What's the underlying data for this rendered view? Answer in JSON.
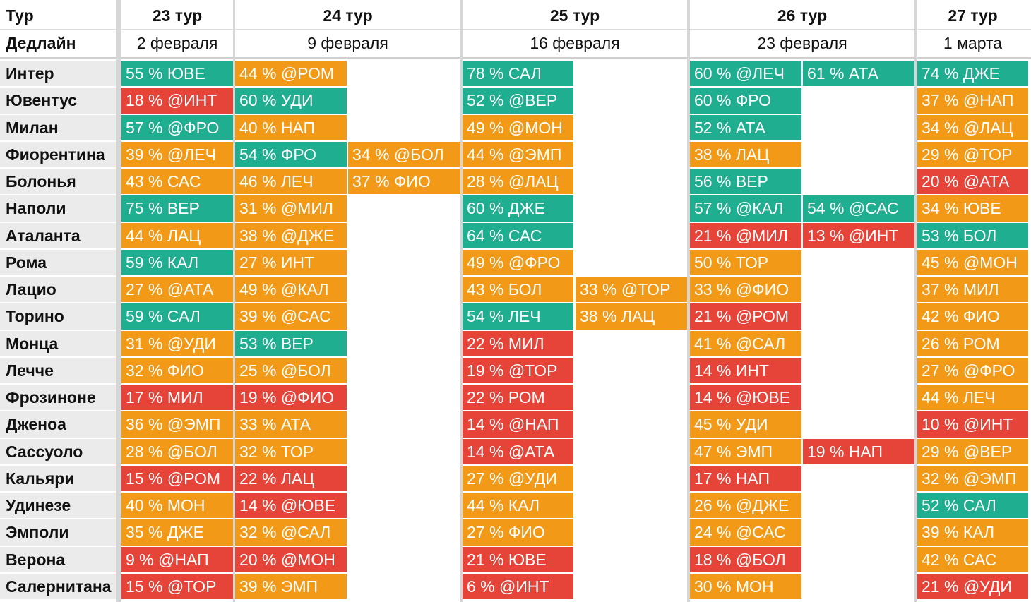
{
  "header": {
    "row1_label": "Тур",
    "row2_label": "Дедлайн",
    "rounds": [
      {
        "name": "23 тур",
        "deadline": "2 февраля"
      },
      {
        "name": "24 тур",
        "deadline": "9 февраля"
      },
      {
        "name": "25 тур",
        "deadline": "16 февраля"
      },
      {
        "name": "26 тур",
        "deadline": "23 февраля"
      },
      {
        "name": "27 тур",
        "deadline": "1 марта"
      }
    ]
  },
  "colors": {
    "green": "#1fae8f",
    "orange": "#f29a18",
    "red": "#e64339"
  },
  "teams": [
    {
      "name": "Интер",
      "cells": [
        [
          "55 % ЮВЕ",
          "g"
        ],
        [
          "44 % @РОМ",
          "o"
        ],
        [
          "",
          ""
        ],
        [
          "78 % САЛ",
          "g"
        ],
        [
          "",
          ""
        ],
        [
          "60 % @ЛЕЧ",
          "g"
        ],
        [
          "61 % АТА",
          "g"
        ],
        [
          "74 % ДЖЕ",
          "g"
        ]
      ]
    },
    {
      "name": "Ювентус",
      "cells": [
        [
          "18 % @ИНТ",
          "r"
        ],
        [
          "60 % УДИ",
          "g"
        ],
        [
          "",
          ""
        ],
        [
          "52 % @ВЕР",
          "g"
        ],
        [
          "",
          ""
        ],
        [
          "60 % ФРО",
          "g"
        ],
        [
          "",
          ""
        ],
        [
          "37 % @НАП",
          "o"
        ]
      ]
    },
    {
      "name": "Милан",
      "cells": [
        [
          "57 % @ФРО",
          "g"
        ],
        [
          "40 % НАП",
          "o"
        ],
        [
          "",
          ""
        ],
        [
          "49 % @МОН",
          "o"
        ],
        [
          "",
          ""
        ],
        [
          "52 % АТА",
          "g"
        ],
        [
          "",
          ""
        ],
        [
          "34 % @ЛАЦ",
          "o"
        ]
      ]
    },
    {
      "name": "Фиорентина",
      "cells": [
        [
          "39 % @ЛЕЧ",
          "o"
        ],
        [
          "54 % ФРО",
          "g"
        ],
        [
          "34 % @БОЛ",
          "o"
        ],
        [
          "44 % @ЭМП",
          "o"
        ],
        [
          "",
          ""
        ],
        [
          "38 % ЛАЦ",
          "o"
        ],
        [
          "",
          ""
        ],
        [
          "29 % @ТОР",
          "o"
        ]
      ]
    },
    {
      "name": "Болонья",
      "cells": [
        [
          "43 % САС",
          "o"
        ],
        [
          "46 % ЛЕЧ",
          "o"
        ],
        [
          "37 % ФИО",
          "o"
        ],
        [
          "28 % @ЛАЦ",
          "o"
        ],
        [
          "",
          ""
        ],
        [
          "56 % ВЕР",
          "g"
        ],
        [
          "",
          ""
        ],
        [
          "20 % @АТА",
          "r"
        ]
      ]
    },
    {
      "name": "Наполи",
      "cells": [
        [
          "75 % ВЕР",
          "g"
        ],
        [
          "31 % @МИЛ",
          "o"
        ],
        [
          "",
          ""
        ],
        [
          "60 % ДЖЕ",
          "g"
        ],
        [
          "",
          ""
        ],
        [
          "57 % @КАЛ",
          "g"
        ],
        [
          "54 % @САС",
          "g"
        ],
        [
          "34 % ЮВЕ",
          "o"
        ]
      ]
    },
    {
      "name": "Аталанта",
      "cells": [
        [
          "44 % ЛАЦ",
          "o"
        ],
        [
          "38 % @ДЖЕ",
          "o"
        ],
        [
          "",
          ""
        ],
        [
          "64 % САС",
          "g"
        ],
        [
          "",
          ""
        ],
        [
          "21 % @МИЛ",
          "r"
        ],
        [
          "13 % @ИНТ",
          "r"
        ],
        [
          "53 % БОЛ",
          "g"
        ]
      ]
    },
    {
      "name": "Рома",
      "cells": [
        [
          "59 % КАЛ",
          "g"
        ],
        [
          "27 % ИНТ",
          "o"
        ],
        [
          "",
          ""
        ],
        [
          "49 % @ФРО",
          "o"
        ],
        [
          "",
          ""
        ],
        [
          "50 % ТОР",
          "o"
        ],
        [
          "",
          ""
        ],
        [
          "45 % @МОН",
          "o"
        ]
      ]
    },
    {
      "name": "Лацио",
      "cells": [
        [
          "27 % @АТА",
          "o"
        ],
        [
          "49 % @КАЛ",
          "o"
        ],
        [
          "",
          ""
        ],
        [
          "43 % БОЛ",
          "o"
        ],
        [
          "33 % @ТОР",
          "o"
        ],
        [
          "33 % @ФИО",
          "o"
        ],
        [
          "",
          ""
        ],
        [
          "37 % МИЛ",
          "o"
        ]
      ]
    },
    {
      "name": "Торино",
      "cells": [
        [
          "59 % САЛ",
          "g"
        ],
        [
          "39 % @САС",
          "o"
        ],
        [
          "",
          ""
        ],
        [
          "54 % ЛЕЧ",
          "g"
        ],
        [
          "38 % ЛАЦ",
          "o"
        ],
        [
          "21 % @РОМ",
          "r"
        ],
        [
          "",
          ""
        ],
        [
          "42 % ФИО",
          "o"
        ]
      ]
    },
    {
      "name": "Монца",
      "cells": [
        [
          "31 % @УДИ",
          "o"
        ],
        [
          "53 % ВЕР",
          "g"
        ],
        [
          "",
          ""
        ],
        [
          "22 % МИЛ",
          "r"
        ],
        [
          "",
          ""
        ],
        [
          "41 % @САЛ",
          "o"
        ],
        [
          "",
          ""
        ],
        [
          "26 % РОМ",
          "o"
        ]
      ]
    },
    {
      "name": "Лечче",
      "cells": [
        [
          "32 % ФИО",
          "o"
        ],
        [
          "25 % @БОЛ",
          "o"
        ],
        [
          "",
          ""
        ],
        [
          "19 % @ТОР",
          "r"
        ],
        [
          "",
          ""
        ],
        [
          "14 % ИНТ",
          "r"
        ],
        [
          "",
          ""
        ],
        [
          "27 % @ФРО",
          "o"
        ]
      ]
    },
    {
      "name": "Фрозиноне",
      "cells": [
        [
          "17 % МИЛ",
          "r"
        ],
        [
          "19 % @ФИО",
          "r"
        ],
        [
          "",
          ""
        ],
        [
          "22 % РОМ",
          "r"
        ],
        [
          "",
          ""
        ],
        [
          "14 % @ЮВЕ",
          "r"
        ],
        [
          "",
          ""
        ],
        [
          "44 % ЛЕЧ",
          "o"
        ]
      ]
    },
    {
      "name": "Дженоа",
      "cells": [
        [
          "36 % @ЭМП",
          "o"
        ],
        [
          "33 % АТА",
          "o"
        ],
        [
          "",
          ""
        ],
        [
          "14 % @НАП",
          "r"
        ],
        [
          "",
          ""
        ],
        [
          "45 % УДИ",
          "o"
        ],
        [
          "",
          ""
        ],
        [
          "10 % @ИНТ",
          "r"
        ]
      ]
    },
    {
      "name": "Сассуоло",
      "cells": [
        [
          "28 % @БОЛ",
          "o"
        ],
        [
          "32 % ТОР",
          "o"
        ],
        [
          "",
          ""
        ],
        [
          "14 % @АТА",
          "r"
        ],
        [
          "",
          ""
        ],
        [
          "47 % ЭМП",
          "o"
        ],
        [
          "19 % НАП",
          "r"
        ],
        [
          "29 % @ВЕР",
          "o"
        ]
      ]
    },
    {
      "name": "Кальяри",
      "cells": [
        [
          "15 % @РОМ",
          "r"
        ],
        [
          "22 % ЛАЦ",
          "r"
        ],
        [
          "",
          ""
        ],
        [
          "27 % @УДИ",
          "o"
        ],
        [
          "",
          ""
        ],
        [
          "17 % НАП",
          "r"
        ],
        [
          "",
          ""
        ],
        [
          "32 % @ЭМП",
          "o"
        ]
      ]
    },
    {
      "name": "Удинезе",
      "cells": [
        [
          "40 % МОН",
          "o"
        ],
        [
          "14 % @ЮВЕ",
          "r"
        ],
        [
          "",
          ""
        ],
        [
          "44 % КАЛ",
          "o"
        ],
        [
          "",
          ""
        ],
        [
          "26 % @ДЖЕ",
          "o"
        ],
        [
          "",
          ""
        ],
        [
          "52 % САЛ",
          "g"
        ]
      ]
    },
    {
      "name": "Эмполи",
      "cells": [
        [
          "35 % ДЖЕ",
          "o"
        ],
        [
          "32 % @САЛ",
          "o"
        ],
        [
          "",
          ""
        ],
        [
          "27 % ФИО",
          "o"
        ],
        [
          "",
          ""
        ],
        [
          "24 % @САС",
          "o"
        ],
        [
          "",
          ""
        ],
        [
          "39 % КАЛ",
          "o"
        ]
      ]
    },
    {
      "name": "Верона",
      "cells": [
        [
          "9 % @НАП",
          "r"
        ],
        [
          "20 % @МОН",
          "r"
        ],
        [
          "",
          ""
        ],
        [
          "21 % ЮВЕ",
          "r"
        ],
        [
          "",
          ""
        ],
        [
          "18 % @БОЛ",
          "r"
        ],
        [
          "",
          ""
        ],
        [
          "42 % САС",
          "o"
        ]
      ]
    },
    {
      "name": "Салернитана",
      "cells": [
        [
          "15 % @ТОР",
          "r"
        ],
        [
          "39 % ЭМП",
          "o"
        ],
        [
          "",
          ""
        ],
        [
          "6 % @ИНТ",
          "r"
        ],
        [
          "",
          ""
        ],
        [
          "30 % МОН",
          "o"
        ],
        [
          "",
          ""
        ],
        [
          "21 % @УДИ",
          "r"
        ]
      ]
    }
  ]
}
